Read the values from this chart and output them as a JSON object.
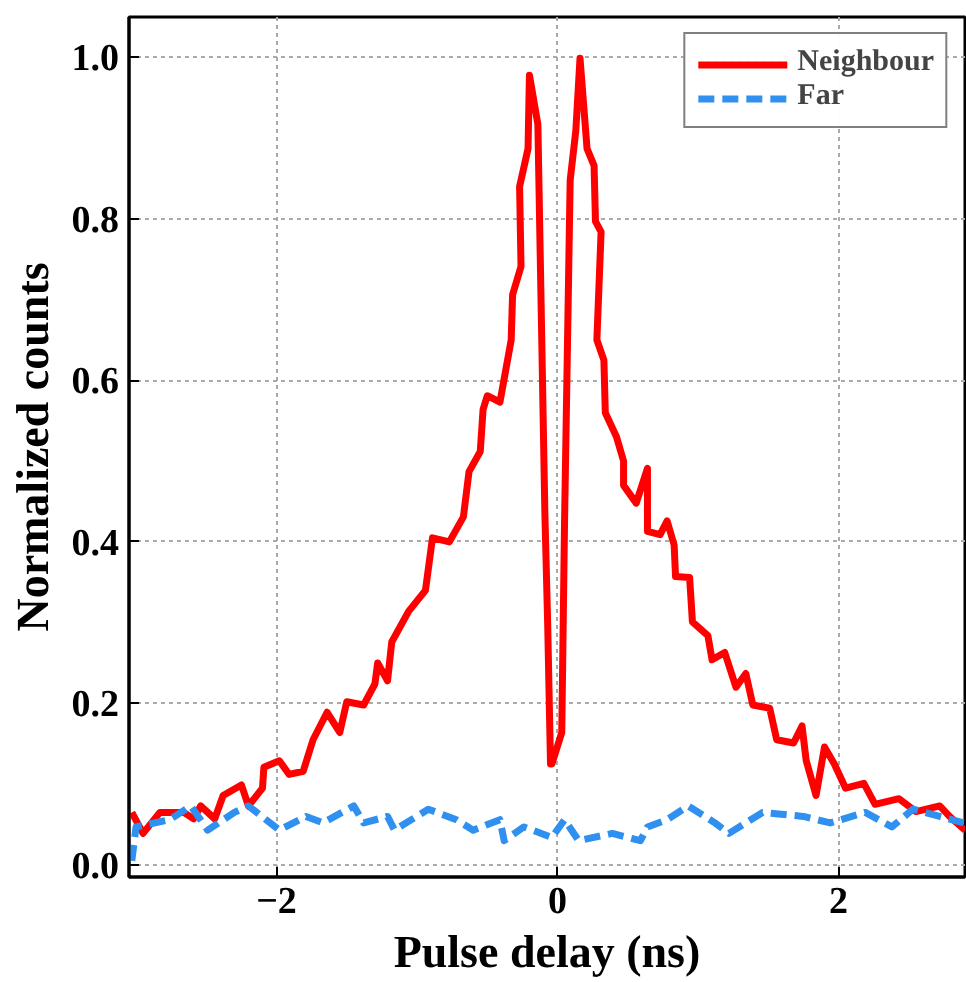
{
  "chart_data": {
    "type": "line",
    "xlabel": "Pulse delay (ns)",
    "ylabel": "Normalized counts",
    "xlim": [
      -3.05,
      2.9
    ],
    "ylim": [
      -0.015,
      1.05
    ],
    "xticks": [
      {
        "value": -2,
        "label": "−2"
      },
      0,
      2
    ],
    "yticks": [
      {
        "value": 0,
        "label": "0.0"
      },
      {
        "value": 0.2,
        "label": "0.2"
      },
      {
        "value": 0.4,
        "label": "0.4"
      },
      {
        "value": 0.6,
        "label": "0.6"
      },
      {
        "value": 0.8,
        "label": "0.8"
      },
      {
        "value": 1.0,
        "label": "1.0"
      }
    ],
    "grid": true,
    "legend": "top right",
    "marker": "none",
    "series": [
      {
        "name": "Neighbour",
        "color": "#ff0000",
        "line_style": "solid",
        "x": [
          -3.03,
          -2.95,
          -2.83,
          -2.66,
          -2.59,
          -2.54,
          -2.44,
          -2.38,
          -2.25,
          -2.2,
          -2.1,
          -2.09,
          -1.98,
          -1.91,
          -1.81,
          -1.74,
          -1.64,
          -1.55,
          -1.5,
          -1.38,
          -1.3,
          -1.28,
          -1.21,
          -1.18,
          -1.06,
          -0.94,
          -0.89,
          -0.77,
          -0.67,
          -0.63,
          -0.55,
          -0.53,
          -0.5,
          -0.41,
          -0.33,
          -0.32,
          -0.26,
          -0.27,
          -0.21,
          -0.2,
          -0.14,
          -0.09,
          -0.07,
          -0.05,
          -0.04,
          0.03,
          0.05,
          0.09,
          0.13,
          0.16,
          0.21,
          0.26,
          0.27,
          0.31,
          0.28,
          0.33,
          0.34,
          0.42,
          0.47,
          0.47,
          0.56,
          0.64,
          0.64,
          0.73,
          0.78,
          0.83,
          0.84,
          0.94,
          0.96,
          1.07,
          1.1,
          1.19,
          1.27,
          1.34,
          1.39,
          1.51,
          1.56,
          1.68,
          1.74,
          1.77,
          1.84,
          1.9,
          1.97,
          2.05,
          2.18,
          2.26,
          2.43,
          2.55,
          2.72,
          2.79,
          2.9
        ],
        "values": [
          0.065,
          0.039,
          0.065,
          0.065,
          0.057,
          0.073,
          0.057,
          0.086,
          0.099,
          0.073,
          0.095,
          0.121,
          0.129,
          0.112,
          0.116,
          0.155,
          0.189,
          0.164,
          0.202,
          0.198,
          0.224,
          0.25,
          0.228,
          0.276,
          0.314,
          0.34,
          0.405,
          0.4,
          0.431,
          0.487,
          0.512,
          0.564,
          0.581,
          0.573,
          0.65,
          0.706,
          0.741,
          0.84,
          0.887,
          0.978,
          0.917,
          0.435,
          0.297,
          0.125,
          0.125,
          0.164,
          0.426,
          0.848,
          0.909,
          0.999,
          0.887,
          0.866,
          0.797,
          0.784,
          0.65,
          0.625,
          0.56,
          0.53,
          0.5,
          0.47,
          0.448,
          0.491,
          0.413,
          0.409,
          0.426,
          0.396,
          0.357,
          0.356,
          0.301,
          0.284,
          0.254,
          0.263,
          0.22,
          0.237,
          0.198,
          0.194,
          0.155,
          0.151,
          0.172,
          0.129,
          0.086,
          0.146,
          0.125,
          0.095,
          0.101,
          0.075,
          0.082,
          0.066,
          0.073,
          0.06,
          0.043
        ]
      },
      {
        "name": "Far",
        "color": "#3090f0",
        "line_style": "dashed",
        "x": [
          -3.03,
          -3.0,
          -2.76,
          -2.61,
          -2.49,
          -2.3,
          -2.2,
          -1.98,
          -1.79,
          -1.67,
          -1.45,
          -1.38,
          -1.21,
          -1.16,
          -0.92,
          -0.72,
          -0.6,
          -0.41,
          -0.38,
          -0.24,
          -0.04,
          0.05,
          0.15,
          0.39,
          0.59,
          0.64,
          0.78,
          0.93,
          1.12,
          1.22,
          1.46,
          1.75,
          1.94,
          2.19,
          2.38,
          2.53,
          2.72,
          2.89
        ],
        "values": [
          0.005,
          0.047,
          0.056,
          0.073,
          0.043,
          0.065,
          0.073,
          0.043,
          0.06,
          0.052,
          0.073,
          0.052,
          0.06,
          0.043,
          0.069,
          0.056,
          0.043,
          0.056,
          0.03,
          0.047,
          0.034,
          0.056,
          0.03,
          0.039,
          0.03,
          0.047,
          0.056,
          0.073,
          0.052,
          0.039,
          0.065,
          0.06,
          0.052,
          0.065,
          0.047,
          0.069,
          0.06,
          0.052
        ]
      }
    ]
  }
}
